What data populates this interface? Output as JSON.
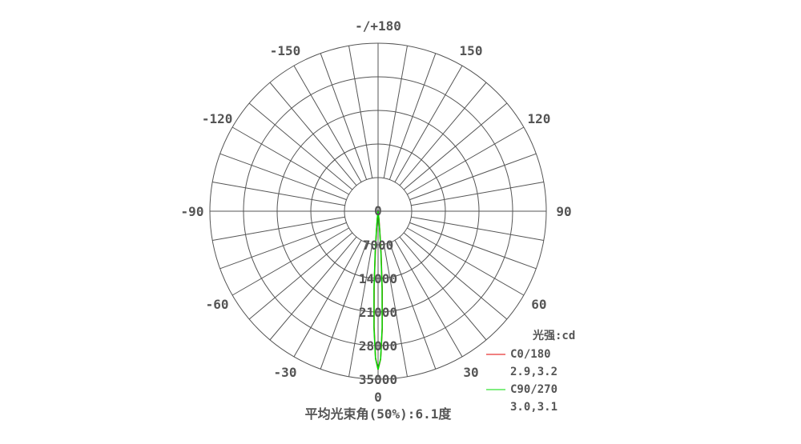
{
  "chart_data": {
    "type": "polar",
    "title": "平均光束角(50%):6.1度",
    "unit_label": "光强:cd",
    "angle_labels": [
      "0",
      "30",
      "60",
      "90",
      "120",
      "150",
      "-/+180",
      "-150",
      "-120",
      "-90",
      "-60",
      "-30"
    ],
    "angle_label_values": [
      0,
      30,
      60,
      90,
      120,
      150,
      180,
      -150,
      -120,
      -90,
      -60,
      -30
    ],
    "radial_labels": [
      "0",
      "7000",
      "14000",
      "21000",
      "28000",
      "35000"
    ],
    "radial_values": [
      0,
      7000,
      14000,
      21000,
      28000,
      35000
    ],
    "rlim": [
      0,
      35000
    ],
    "spoke_step_deg": 10,
    "grid": true,
    "legend_position": "bottom-right",
    "series": [
      {
        "name": "C0/180",
        "beam": "2.9,3.2",
        "color": "#e00000",
        "angles": [
          -10,
          -8,
          -6,
          -5,
          -4,
          -3,
          -2,
          -1,
          0,
          1,
          2,
          3,
          4,
          5,
          6,
          8,
          10
        ],
        "values": [
          0,
          200,
          1500,
          3500,
          8000,
          15500,
          24000,
          30500,
          33000,
          30800,
          24600,
          16500,
          9000,
          4000,
          1700,
          200,
          0
        ]
      },
      {
        "name": "C90/270",
        "beam": "3.0,3.1",
        "color": "#00dd00",
        "angles": [
          -10,
          -8,
          -6,
          -5,
          -4,
          -3,
          -2,
          -1,
          0,
          1,
          2,
          3,
          4,
          5,
          6,
          8,
          10
        ],
        "values": [
          0,
          200,
          1600,
          3800,
          8500,
          16200,
          24500,
          30700,
          33000,
          30700,
          24300,
          16000,
          8300,
          3700,
          1500,
          200,
          0
        ]
      }
    ]
  }
}
